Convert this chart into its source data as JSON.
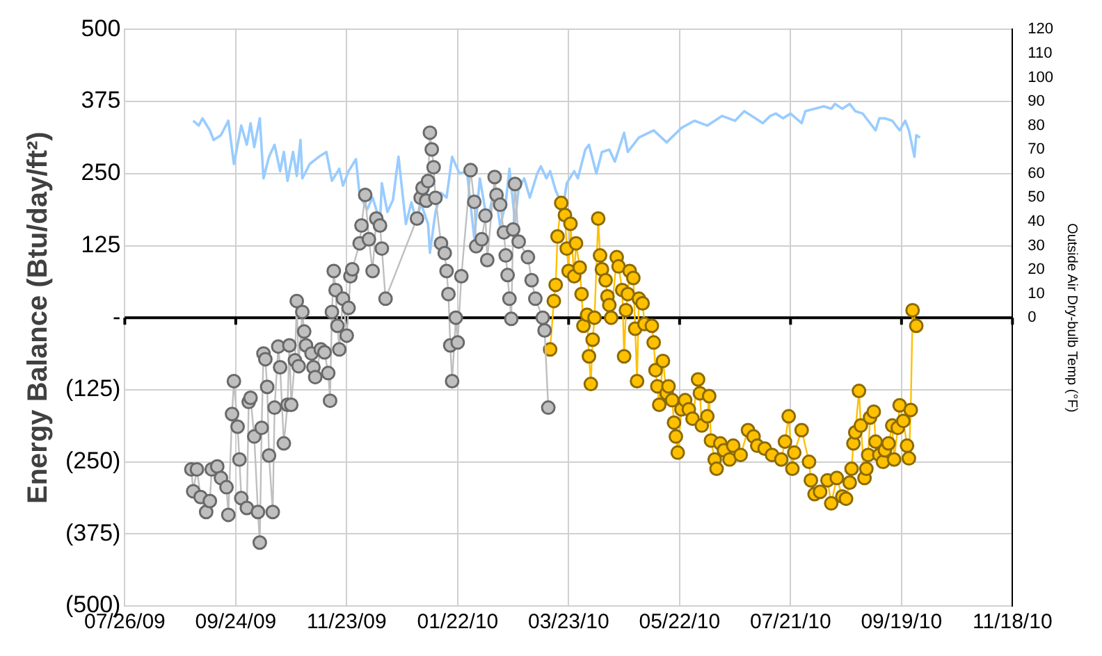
{
  "chart_data": {
    "type": "line",
    "ylabel": "Energy Balance (Btu/day/ft²)",
    "y2label": "Outside Air Dry-bulb Temp (°F)",
    "xlim": [
      "2009-07-26",
      "2010-11-18"
    ],
    "xticks": [
      {
        "value": "2009-07-26",
        "label": "07/26/09"
      },
      {
        "value": "2009-09-24",
        "label": "09/24/09"
      },
      {
        "value": "2009-11-23",
        "label": "11/23/09"
      },
      {
        "value": "2010-01-22",
        "label": "01/22/10"
      },
      {
        "value": "2010-03-23",
        "label": "03/23/10"
      },
      {
        "value": "2010-05-22",
        "label": "05/22/10"
      },
      {
        "value": "2010-07-21",
        "label": "07/21/10"
      },
      {
        "value": "2010-09-19",
        "label": "09/19/10"
      },
      {
        "value": "2010-11-18",
        "label": "11/18/10"
      }
    ],
    "ylim": [
      -500,
      500
    ],
    "yticks": [
      {
        "value": -500,
        "label": "(500)"
      },
      {
        "value": -375,
        "label": "(375)"
      },
      {
        "value": -250,
        "label": "(250)"
      },
      {
        "value": -125,
        "label": "(125)"
      },
      {
        "value": 0,
        "label": "-"
      },
      125,
      250,
      375,
      500
    ],
    "y2lim": [
      -120,
      120
    ],
    "y2ticks": [
      0,
      10,
      20,
      30,
      40,
      50,
      60,
      70,
      80,
      90,
      100,
      110,
      120
    ],
    "grid": true,
    "marker": "circle",
    "line_style": "solid",
    "ref_lines": [
      {
        "axis": "y",
        "value": 0,
        "color": "#000000"
      }
    ],
    "series": [
      {
        "color": "#bfbfbf",
        "x": [
          "2009-08-31",
          "2009-09-01",
          "2009-09-03",
          "2009-09-05",
          "2009-09-08",
          "2009-09-10",
          "2009-09-11",
          "2009-09-14",
          "2009-09-16",
          "2009-09-19",
          "2009-09-20",
          "2009-09-22",
          "2009-09-23",
          "2009-09-25",
          "2009-09-26",
          "2009-09-27",
          "2009-09-30",
          "2009-10-01",
          "2009-10-02",
          "2009-10-04",
          "2009-10-06",
          "2009-10-07",
          "2009-10-08",
          "2009-10-09",
          "2009-10-10",
          "2009-10-11",
          "2009-10-12",
          "2009-10-14",
          "2009-10-15",
          "2009-10-17",
          "2009-10-18",
          "2009-10-20",
          "2009-10-22",
          "2009-10-23",
          "2009-10-24",
          "2009-10-26",
          "2009-10-27",
          "2009-10-28",
          "2009-10-30",
          "2009-10-31",
          "2009-11-01",
          "2009-11-04",
          "2009-11-05",
          "2009-11-06",
          "2009-11-09",
          "2009-11-11",
          "2009-11-13",
          "2009-11-14",
          "2009-11-15",
          "2009-11-16",
          "2009-11-17",
          "2009-11-18",
          "2009-11-19",
          "2009-11-21",
          "2009-11-23",
          "2009-11-24",
          "2009-11-25",
          "2009-11-26",
          "2009-11-30",
          "2009-12-01",
          "2009-12-03",
          "2009-12-05",
          "2009-12-07",
          "2009-12-09",
          "2009-12-11",
          "2009-12-12",
          "2009-12-14",
          "2009-12-31",
          "2010-01-02",
          "2010-01-03",
          "2010-01-05",
          "2010-01-06",
          "2010-01-07",
          "2010-01-08",
          "2010-01-09",
          "2010-01-10",
          "2010-01-13",
          "2010-01-15",
          "2010-01-16",
          "2010-01-17",
          "2010-01-18",
          "2010-01-19",
          "2010-01-21",
          "2010-01-22",
          "2010-01-24",
          "2010-01-29",
          "2010-01-31",
          "2010-02-01",
          "2010-02-04",
          "2010-02-06",
          "2010-02-07",
          "2010-02-11",
          "2010-02-12",
          "2010-02-14",
          "2010-02-16",
          "2010-02-17",
          "2010-02-18",
          "2010-02-19",
          "2010-02-20",
          "2010-02-21",
          "2010-02-22",
          "2010-02-24",
          "2010-03-01",
          "2010-03-03",
          "2010-03-05",
          "2010-03-09",
          "2010-03-10",
          "2010-03-12"
        ],
        "values": [
          -263,
          -301,
          -263,
          -311,
          -337,
          -318,
          -263,
          -258,
          -278,
          -294,
          -342,
          -167,
          -110,
          -189,
          -246,
          -313,
          -330,
          -146,
          -139,
          -206,
          -337,
          -390,
          -191,
          -62,
          -72,
          -120,
          -239,
          -337,
          -156,
          -50,
          -86,
          -218,
          -151,
          -48,
          -151,
          -74,
          29,
          -84,
          10,
          -24,
          -48,
          -62,
          -86,
          -103,
          -55,
          -60,
          -96,
          -144,
          10,
          81,
          48,
          -14,
          -55,
          33,
          -31,
          17,
          72,
          84,
          129,
          160,
          213,
          136,
          81,
          172,
          160,
          120,
          33,
          172,
          208,
          225,
          203,
          237,
          321,
          292,
          261,
          208,
          129,
          112,
          81,
          41,
          -48,
          -110,
          0,
          -43,
          72,
          256,
          201,
          124,
          136,
          177,
          100,
          244,
          213,
          196,
          148,
          108,
          74,
          33,
          -2,
          153,
          232,
          132,
          105,
          65,
          33,
          0,
          -22,
          -156
        ]
      },
      {
        "color": "#ffc000",
        "x": [
          "2010-03-13",
          "2010-03-15",
          "2010-03-16",
          "2010-03-17",
          "2010-03-19",
          "2010-03-21",
          "2010-03-22",
          "2010-03-23",
          "2010-03-24",
          "2010-03-26",
          "2010-03-27",
          "2010-03-29",
          "2010-03-30",
          "2010-03-31",
          "2010-04-02",
          "2010-04-03",
          "2010-04-04",
          "2010-04-05",
          "2010-04-06",
          "2010-04-08",
          "2010-04-09",
          "2010-04-10",
          "2010-04-12",
          "2010-04-13",
          "2010-04-14",
          "2010-04-15",
          "2010-04-18",
          "2010-04-19",
          "2010-04-21",
          "2010-04-22",
          "2010-04-23",
          "2010-04-24",
          "2010-04-25",
          "2010-04-27",
          "2010-04-28",
          "2010-04-29",
          "2010-04-30",
          "2010-05-02",
          "2010-05-03",
          "2010-05-07",
          "2010-05-08",
          "2010-05-09",
          "2010-05-10",
          "2010-05-11",
          "2010-05-13",
          "2010-05-15",
          "2010-05-16",
          "2010-05-18",
          "2010-05-19",
          "2010-05-20",
          "2010-05-21",
          "2010-05-23",
          "2010-05-25",
          "2010-05-27",
          "2010-05-29",
          "2010-06-01",
          "2010-06-02",
          "2010-06-03",
          "2010-06-06",
          "2010-06-07",
          "2010-06-08",
          "2010-06-10",
          "2010-06-11",
          "2010-06-13",
          "2010-06-15",
          "2010-06-18",
          "2010-06-20",
          "2010-06-24",
          "2010-06-28",
          "2010-07-01",
          "2010-07-03",
          "2010-07-07",
          "2010-07-11",
          "2010-07-16",
          "2010-07-18",
          "2010-07-20",
          "2010-07-22",
          "2010-07-23",
          "2010-07-27",
          "2010-07-31",
          "2010-08-01",
          "2010-08-03",
          "2010-08-06",
          "2010-08-10",
          "2010-08-12",
          "2010-08-15",
          "2010-08-18",
          "2010-08-20",
          "2010-08-22",
          "2010-08-23",
          "2010-08-24",
          "2010-08-25",
          "2010-08-27",
          "2010-08-28",
          "2010-08-30",
          "2010-08-31",
          "2010-09-01",
          "2010-09-02",
          "2010-09-04",
          "2010-09-05",
          "2010-09-07",
          "2010-09-09",
          "2010-09-10",
          "2010-09-12",
          "2010-09-14",
          "2010-09-15",
          "2010-09-17",
          "2010-09-18",
          "2010-09-20",
          "2010-09-22",
          "2010-09-23",
          "2010-09-24",
          "2010-09-25",
          "2010-09-27"
        ],
        "values": [
          -55,
          29,
          57,
          141,
          199,
          178,
          120,
          81,
          163,
          72,
          129,
          87,
          41,
          -14,
          5,
          -67,
          -115,
          -38,
          0,
          172,
          108,
          84,
          65,
          37,
          22,
          0,
          105,
          89,
          48,
          -67,
          13,
          41,
          81,
          69,
          -19,
          -110,
          33,
          25,
          -11,
          -14,
          -43,
          -91,
          -119,
          -151,
          -75,
          -131,
          -119,
          -143,
          -182,
          -206,
          -234,
          -159,
          -143,
          -159,
          -175,
          -107,
          -131,
          -187,
          -171,
          -136,
          -213,
          -246,
          -262,
          -218,
          -230,
          -246,
          -222,
          -238,
          -195,
          -206,
          -222,
          -227,
          -238,
          -246,
          -215,
          -171,
          -262,
          -234,
          -195,
          -250,
          -282,
          -306,
          -302,
          -282,
          -322,
          -278,
          -310,
          -314,
          -286,
          -262,
          -218,
          -199,
          -127,
          -187,
          -278,
          -262,
          -238,
          -173,
          -163,
          -215,
          -238,
          -250,
          -230,
          -218,
          -187,
          -246,
          -191,
          -152,
          -179,
          -222,
          -244,
          -160,
          13,
          -14
        ]
      },
      {
        "color": "#99ccff",
        "axis": "y2",
        "marker": "none",
        "x": [
          "2009-09-01",
          "2009-09-04",
          "2009-09-06",
          "2009-09-10",
          "2009-09-12",
          "2009-09-16",
          "2009-09-20",
          "2009-09-23",
          "2009-09-27",
          "2009-09-30",
          "2009-10-02",
          "2009-10-04",
          "2009-10-07",
          "2009-10-09",
          "2009-10-12",
          "2009-10-15",
          "2009-10-18",
          "2009-10-20",
          "2009-10-22",
          "2009-10-25",
          "2009-10-27",
          "2009-10-29",
          "2009-10-30",
          "2009-11-03",
          "2009-11-08",
          "2009-11-12",
          "2009-11-15",
          "2009-11-19",
          "2009-11-21",
          "2009-11-24",
          "2009-11-28",
          "2009-11-30",
          "2009-12-04",
          "2009-12-07",
          "2009-12-11",
          "2009-12-12",
          "2009-12-15",
          "2009-12-18",
          "2009-12-21",
          "2009-12-25",
          "2009-12-28",
          "2009-12-31",
          "2010-01-02",
          "2010-01-06",
          "2010-01-07",
          "2010-01-10",
          "2010-01-13",
          "2010-01-16",
          "2010-01-19",
          "2010-01-23",
          "2010-01-27",
          "2010-01-31",
          "2010-02-03",
          "2010-02-07",
          "2010-02-11",
          "2010-02-14",
          "2010-02-17",
          "2010-02-19",
          "2010-02-22",
          "2010-02-24",
          "2010-02-27",
          "2010-03-02",
          "2010-03-06",
          "2010-03-08",
          "2010-03-11",
          "2010-03-13",
          "2010-03-16",
          "2010-03-20",
          "2010-03-22",
          "2010-03-26",
          "2010-03-28",
          "2010-04-01",
          "2010-04-03",
          "2010-04-07",
          "2010-04-10",
          "2010-04-14",
          "2010-04-17",
          "2010-04-22",
          "2010-04-24",
          "2010-04-30",
          "2010-05-08",
          "2010-05-15",
          "2010-05-23",
          "2010-05-30",
          "2010-06-06",
          "2010-06-14",
          "2010-06-21",
          "2010-06-26",
          "2010-07-02",
          "2010-07-06",
          "2010-07-10",
          "2010-07-13",
          "2010-07-17",
          "2010-07-21",
          "2010-07-27",
          "2010-07-29",
          "2010-08-03",
          "2010-08-08",
          "2010-08-12",
          "2010-08-14",
          "2010-08-18",
          "2010-08-22",
          "2010-08-25",
          "2010-08-29",
          "2010-09-01",
          "2010-09-05",
          "2010-09-07",
          "2010-09-10",
          "2010-09-14",
          "2010-09-18",
          "2010-09-21",
          "2010-09-23",
          "2010-09-26",
          "2010-09-27",
          "2010-09-29"
        ],
        "values": [
          82,
          80,
          83,
          78,
          74,
          76,
          82,
          64,
          80,
          72,
          81,
          71,
          83,
          58,
          67,
          72,
          61,
          69,
          57,
          69,
          59,
          74,
          58,
          64,
          67,
          69,
          57,
          62,
          55,
          61,
          66,
          51,
          45,
          50,
          40,
          56,
          44,
          49,
          67,
          39,
          48,
          39,
          48,
          39,
          27,
          44,
          52,
          50,
          67,
          60,
          61,
          33,
          58,
          40,
          54,
          38,
          48,
          62,
          40,
          54,
          58,
          50,
          60,
          63,
          58,
          61,
          53,
          46,
          56,
          61,
          58,
          70,
          72,
          60,
          69,
          70,
          65,
          77,
          69,
          75,
          78,
          73,
          79,
          82,
          80,
          84,
          82,
          86,
          83,
          81,
          84,
          85,
          83,
          85,
          81,
          86,
          87,
          88,
          87,
          89,
          87,
          89,
          86,
          85,
          82,
          78,
          83,
          83,
          82,
          78,
          82,
          78,
          67,
          76,
          75
        ]
      }
    ]
  }
}
